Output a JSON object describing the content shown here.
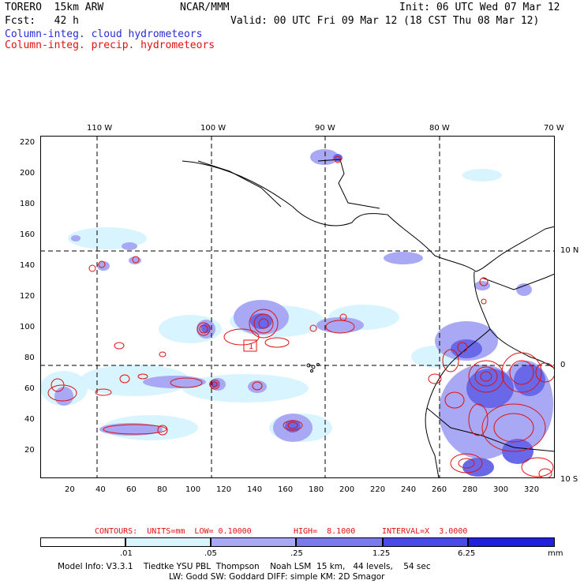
{
  "header": {
    "model": "TORERO  15km ARW",
    "org": "NCAR/MMM",
    "init": "Init: 06 UTC Wed 07 Mar 12",
    "fcst": "Fcst:   42 h",
    "valid": "Valid: 00 UTC Fri 09 Mar 12 (18 CST Thu 08 Mar 12)",
    "field_cloud": "Column-integ. cloud hydrometeors",
    "field_precip": "Column-integ. precip. hydrometeors"
  },
  "axes": {
    "top_lon_labels": [
      "110 W",
      "100 W",
      "90 W",
      "80 W",
      "70 W"
    ],
    "right_lat_labels": [
      "10 N",
      "0",
      "10 S"
    ],
    "y_ticks": [
      "220",
      "200",
      "180",
      "160",
      "140",
      "120",
      "100",
      "80",
      "60",
      "40",
      "20"
    ],
    "x_ticks": [
      "20",
      "40",
      "60",
      "80",
      "100",
      "120",
      "140",
      "160",
      "180",
      "200",
      "220",
      "240",
      "260",
      "280",
      "300",
      "320"
    ]
  },
  "map": {
    "box_label": "1",
    "colors": {
      "cloud_light": "#d8f4ff",
      "cloud_mid": "#a8a8f4",
      "cloud_dark": "#6868e8",
      "precip_contour": "#e01010",
      "land_line": "#000000"
    }
  },
  "contours_info": {
    "units": "CONTOURS:  UNITS=mm  LOW= 0.10000",
    "high": "HIGH=  8.1000",
    "interval": "INTERVAL=X  3.0000"
  },
  "colorbar": {
    "labels": [
      ".01",
      ".05",
      ".25",
      "1.25",
      "6.25"
    ],
    "unit": "mm",
    "colors": [
      "#ffffff",
      "#d8f4ff",
      "#a8a8f4",
      "#7a7aee",
      "#4a4ae8",
      "#2020e0"
    ]
  },
  "footer": {
    "line1": "Model Info: V3.3.1    Tiedtke YSU PBL  Thompson    Noah LSM  15 km,   44 levels,    54 sec",
    "line2": "LW: Godd SW: Goddard DIFF: simple KM: 2D Smagor"
  }
}
